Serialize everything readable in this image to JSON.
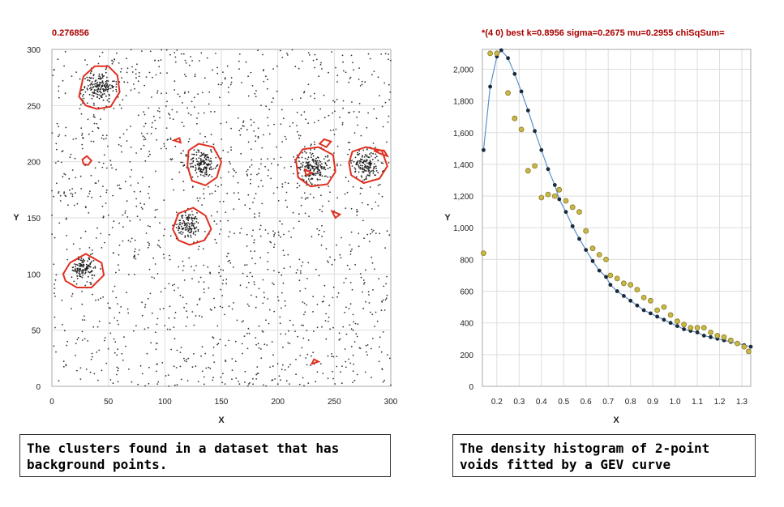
{
  "colors": {
    "title": "#aa0000",
    "cluster_outline": "#e03020",
    "points": "#333333",
    "grid": "#dddddd",
    "fit_line": "#5b8fc9",
    "fit_points": "#1a2a3a",
    "histogram_points": "#c8b84a",
    "histogram_outline": "#8a7a20"
  },
  "captions": {
    "left": "The clusters found in a dataset that has background points.",
    "right": "The density histogram of 2-point voids fitted by a GEV curve"
  },
  "chart_data": [
    {
      "type": "scatter",
      "title": "0.276856",
      "xlabel": "X",
      "ylabel": "Y",
      "xlim": [
        0,
        300
      ],
      "ylim": [
        0,
        300
      ],
      "x_ticks": [
        "0",
        "50",
        "100",
        "150",
        "200",
        "250",
        "300"
      ],
      "y_ticks": [
        "0",
        "50",
        "100",
        "150",
        "200",
        "250",
        "300"
      ],
      "grid": true,
      "background_points": 1500,
      "clusters": [
        {
          "cx": 42,
          "cy": 267,
          "spread": 9,
          "n": 170,
          "outline": [
            [
              24,
              258
            ],
            [
              28,
              276
            ],
            [
              38,
              285
            ],
            [
              50,
              285
            ],
            [
              58,
              277
            ],
            [
              60,
              262
            ],
            [
              52,
              249
            ],
            [
              40,
              247
            ],
            [
              30,
              250
            ]
          ]
        },
        {
          "cx": 133,
          "cy": 198,
          "spread": 8,
          "n": 150,
          "outline": [
            [
              121,
              210
            ],
            [
              130,
              216
            ],
            [
              143,
              213
            ],
            [
              150,
              200
            ],
            [
              146,
              186
            ],
            [
              136,
              179
            ],
            [
              124,
              183
            ],
            [
              120,
              196
            ]
          ]
        },
        {
          "cx": 121,
          "cy": 144,
          "spread": 7,
          "n": 120,
          "outline": [
            [
              107,
              140
            ],
            [
              112,
              130
            ],
            [
              122,
              126
            ],
            [
              135,
              130
            ],
            [
              141,
              140
            ],
            [
              136,
              152
            ],
            [
              125,
              159
            ],
            [
              112,
              154
            ]
          ]
        },
        {
          "cx": 231,
          "cy": 195,
          "spread": 9,
          "n": 180,
          "outline": [
            [
              216,
              202
            ],
            [
              222,
              211
            ],
            [
              236,
              213
            ],
            [
              249,
              206
            ],
            [
              251,
              191
            ],
            [
              244,
              180
            ],
            [
              229,
              178
            ],
            [
              218,
              186
            ]
          ]
        },
        {
          "cx": 278,
          "cy": 197,
          "spread": 8,
          "n": 150,
          "outline": [
            [
              263,
              199
            ],
            [
              266,
              209
            ],
            [
              278,
              213
            ],
            [
              292,
              210
            ],
            [
              297,
              196
            ],
            [
              290,
              185
            ],
            [
              276,
              181
            ],
            [
              265,
              188
            ]
          ]
        },
        {
          "cx": 28,
          "cy": 105,
          "spread": 7,
          "n": 120,
          "outline": [
            [
              10,
              100
            ],
            [
              16,
              110
            ],
            [
              30,
              118
            ],
            [
              44,
              110
            ],
            [
              46,
              99
            ],
            [
              35,
              88
            ],
            [
              22,
              88
            ],
            [
              12,
              94
            ]
          ]
        }
      ],
      "small_regions": [
        [
          [
            27,
            202
          ],
          [
            31,
            205
          ],
          [
            35,
            201
          ],
          [
            32,
            197
          ],
          [
            28,
            198
          ]
        ],
        [
          [
            108,
            219
          ],
          [
            113,
            221
          ],
          [
            114,
            217
          ]
        ],
        [
          [
            248,
            156
          ],
          [
            251,
            150
          ],
          [
            255,
            153
          ]
        ],
        [
          [
            232,
            24
          ],
          [
            236,
            22
          ],
          [
            230,
            20
          ]
        ],
        [
          [
            225,
            188
          ],
          [
            224,
            193
          ],
          [
            230,
            190
          ]
        ],
        [
          [
            285,
            210
          ],
          [
            294,
            210
          ],
          [
            297,
            205
          ],
          [
            291,
            207
          ]
        ],
        [
          [
            237,
            216
          ],
          [
            243,
            213
          ],
          [
            247,
            218
          ],
          [
            241,
            220
          ]
        ]
      ]
    },
    {
      "type": "scatter",
      "title": "*(4 0) best k=0.8956 sigma=0.2675 mu=0.2955 chiSqSum=",
      "xlabel": "X",
      "ylabel": "Y",
      "xlim": [
        0.135,
        1.34
      ],
      "ylim": [
        0,
        2125
      ],
      "x_ticks": [
        0.2,
        0.3,
        0.4,
        0.5,
        0.6,
        0.7,
        0.8,
        0.9,
        1.0,
        1.1,
        1.2,
        1.3
      ],
      "x_tick_labels": [
        "0.2",
        "0.3",
        "0.4",
        "0.5",
        "0.6",
        "0.7",
        "0.8",
        "0.9",
        "1.0",
        "1.1",
        "1.2",
        "1.3"
      ],
      "y_ticks": [
        0,
        200,
        400,
        600,
        800,
        1000,
        1200,
        1400,
        1600,
        1800,
        2000
      ],
      "y_tick_labels": [
        "0",
        "200",
        "400",
        "600",
        "800",
        "1,000",
        "1,200",
        "1,400",
        "1,600",
        "1,800",
        "2,000"
      ],
      "grid": true,
      "series": [
        {
          "style": "histogram",
          "x": [
            0.14,
            0.17,
            0.2,
            0.25,
            0.28,
            0.31,
            0.34,
            0.37,
            0.4,
            0.43,
            0.46,
            0.48,
            0.51,
            0.54,
            0.57,
            0.6,
            0.63,
            0.66,
            0.69,
            0.71,
            0.74,
            0.77,
            0.8,
            0.83,
            0.86,
            0.89,
            0.92,
            0.95,
            0.98,
            1.01,
            1.04,
            1.07,
            1.1,
            1.13,
            1.16,
            1.19,
            1.22,
            1.25,
            1.28,
            1.31,
            1.33
          ],
          "y": [
            840,
            2100,
            2100,
            1850,
            1690,
            1620,
            1360,
            1390,
            1190,
            1210,
            1200,
            1240,
            1170,
            1130,
            1100,
            980,
            870,
            830,
            800,
            700,
            680,
            650,
            640,
            610,
            560,
            540,
            480,
            500,
            450,
            410,
            390,
            370,
            370,
            370,
            340,
            320,
            310,
            290,
            270,
            250,
            220
          ]
        },
        {
          "style": "fit",
          "x": [
            0.14,
            0.17,
            0.2,
            0.22,
            0.25,
            0.28,
            0.31,
            0.34,
            0.37,
            0.4,
            0.43,
            0.46,
            0.48,
            0.51,
            0.54,
            0.57,
            0.6,
            0.63,
            0.66,
            0.69,
            0.71,
            0.74,
            0.77,
            0.8,
            0.83,
            0.86,
            0.89,
            0.92,
            0.95,
            0.98,
            1.01,
            1.04,
            1.07,
            1.1,
            1.13,
            1.16,
            1.19,
            1.22,
            1.25,
            1.28,
            1.31,
            1.34
          ],
          "y": [
            1490,
            1890,
            2080,
            2120,
            2070,
            1970,
            1860,
            1740,
            1610,
            1490,
            1370,
            1270,
            1180,
            1100,
            1010,
            930,
            860,
            790,
            730,
            690,
            640,
            600,
            570,
            540,
            510,
            480,
            460,
            440,
            420,
            400,
            380,
            360,
            350,
            340,
            320,
            310,
            300,
            290,
            280,
            270,
            260,
            250
          ]
        }
      ]
    }
  ]
}
